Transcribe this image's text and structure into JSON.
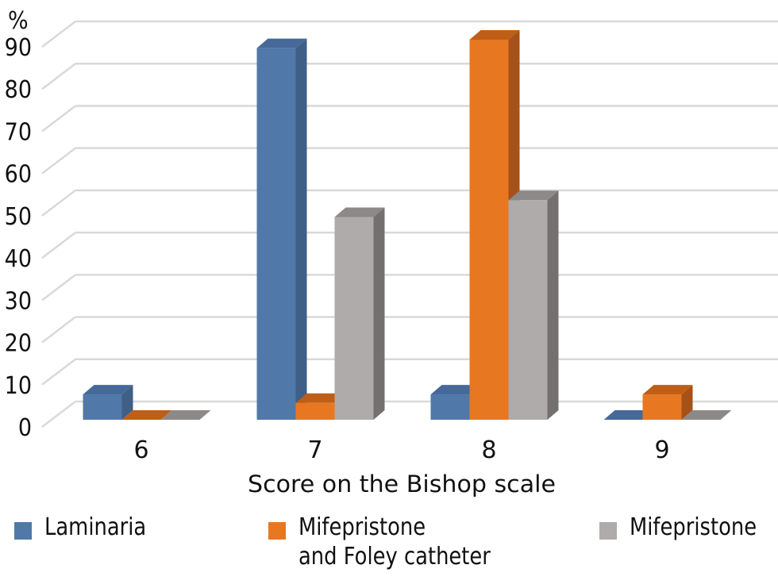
{
  "chart_data": {
    "type": "bar",
    "style": "3d-clustered-column",
    "title": "",
    "ylabel": "%",
    "xlabel": "Score on the Bishop scale",
    "ylim": [
      0,
      90
    ],
    "yticks": [
      0,
      10,
      20,
      30,
      40,
      50,
      60,
      70,
      80,
      90
    ],
    "grid": true,
    "legend_position": "bottom",
    "categories": [
      "6",
      "7",
      "8",
      "9"
    ],
    "series": [
      {
        "name": "Laminaria",
        "color": "#5078A8",
        "side_color": "#3F5F87",
        "top_color": "#46699A",
        "values": [
          6,
          88,
          6,
          0
        ]
      },
      {
        "name": "Mifepristone\nand Foley catheter",
        "color": "#E87722",
        "side_color": "#A65118",
        "top_color": "#BF5E16",
        "values": [
          0,
          4,
          90,
          6
        ]
      },
      {
        "name": "Mifepristone",
        "color": "#AEABAA",
        "side_color": "#747070",
        "top_color": "#8C8988",
        "values": [
          0,
          48,
          52,
          0
        ]
      }
    ]
  }
}
